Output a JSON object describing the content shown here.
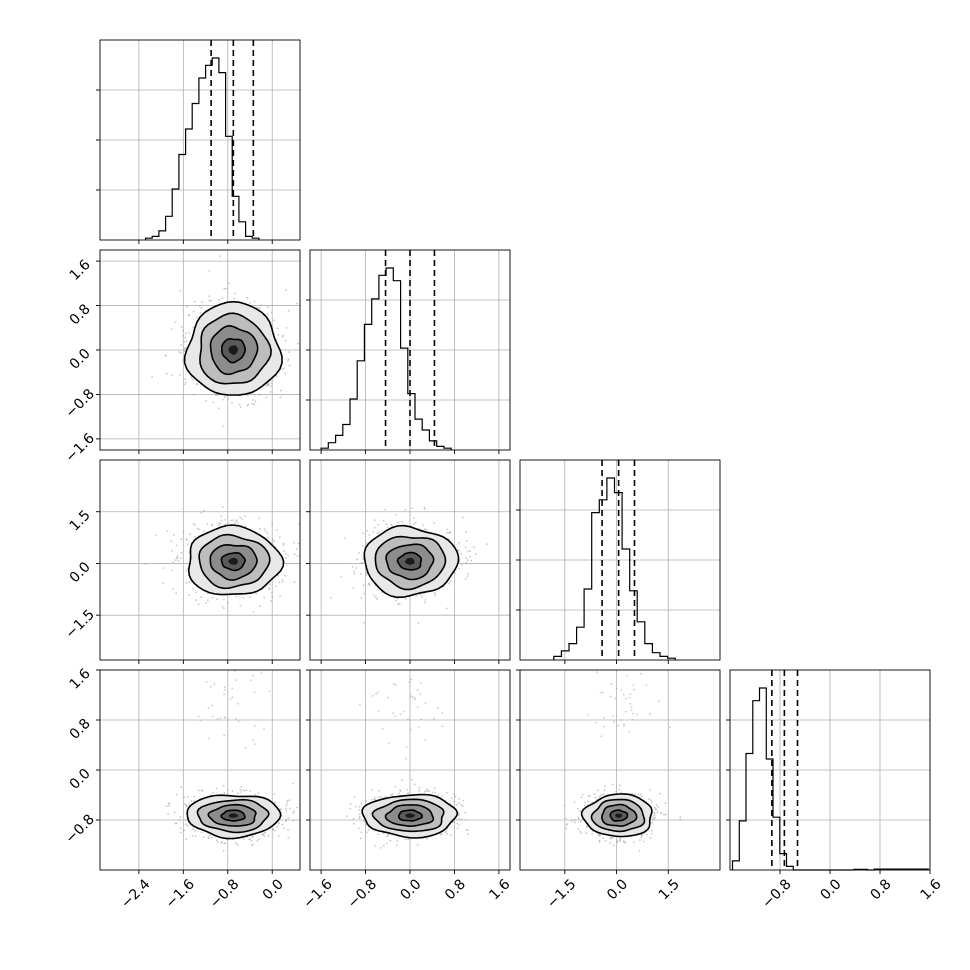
{
  "chart_data": {
    "type": "corner",
    "n_params": 4,
    "grid": true,
    "colors": {
      "line": "#000000",
      "grid": "#b0b0b0",
      "scatter": "#9a9a9a",
      "fill_levels": [
        "#e8e8e8",
        "#bdbdbd",
        "#8c8c8c",
        "#5a5a5a",
        "#1a1a1a"
      ]
    },
    "params": [
      {
        "range": [
          -3.1,
          0.5
        ],
        "ticks": [
          -2.4,
          -1.6,
          -0.8,
          0.0
        ],
        "tick_labels": [
          "−2.4",
          "−1.6",
          "−0.8",
          "0.0"
        ],
        "quantiles": [
          -1.1,
          -0.7,
          -0.34
        ],
        "hist_start": -2.28,
        "hist_step": 0.12,
        "hist": [
          0.01,
          0.02,
          0.05,
          0.13,
          0.28,
          0.47,
          0.61,
          0.75,
          0.89,
          0.96,
          1.0,
          0.92,
          0.57,
          0.24,
          0.1,
          0.02,
          0.01
        ]
      },
      {
        "range": [
          -1.8,
          1.8
        ],
        "ticks": [
          -1.6,
          -0.8,
          0.0,
          0.8,
          1.6
        ],
        "tick_labels": [
          "−1.6",
          "−0.8",
          "0.0",
          "0.8",
          "1.6"
        ],
        "quantiles": [
          -0.44,
          0.0,
          0.44
        ],
        "hist_start": -1.6,
        "hist_step": 0.13,
        "hist": [
          0.01,
          0.04,
          0.08,
          0.14,
          0.28,
          0.49,
          0.69,
          0.83,
          0.96,
          1.0,
          0.93,
          0.56,
          0.31,
          0.17,
          0.11,
          0.05,
          0.02,
          0.01
        ]
      },
      {
        "range": [
          -2.8,
          3.0
        ],
        "ticks": [
          -1.5,
          0.0,
          1.5
        ],
        "tick_labels": [
          "−1.5",
          "0.0",
          "1.5"
        ],
        "quantiles": [
          -0.42,
          0.06,
          0.52
        ],
        "hist_start": -1.82,
        "hist_step": 0.22,
        "hist": [
          0.02,
          0.05,
          0.09,
          0.18,
          0.39,
          0.81,
          0.88,
          1.0,
          0.92,
          0.61,
          0.38,
          0.21,
          0.09,
          0.04,
          0.02,
          0.01
        ]
      },
      {
        "range": [
          -1.6,
          1.6
        ],
        "ticks": [
          -0.8,
          0.0,
          0.8,
          1.6
        ],
        "tick_labels": [
          "−0.8",
          "0.0",
          "0.8",
          "1.6"
        ],
        "quantiles": [
          -0.93,
          -0.73,
          -0.52
        ],
        "hist_start": -1.56,
        "hist_step": 0.108,
        "hist": [
          0.05,
          0.27,
          0.64,
          0.93,
          1.0,
          0.61,
          0.29,
          0.09,
          0.02,
          0.0,
          0.0,
          0.0,
          0.0,
          0.0,
          0.0,
          0.0,
          0.0,
          0.0,
          0.004,
          0.004,
          0.0,
          0.005,
          0.005,
          0.005,
          0.005,
          0.005,
          0.005,
          0.005,
          0.005
        ]
      }
    ],
    "pairs": [
      {
        "row": 1,
        "col": 0,
        "center": [
          -0.7,
          0.0
        ],
        "sigma": [
          0.42,
          0.42
        ],
        "outlier_center": null
      },
      {
        "row": 2,
        "col": 0,
        "center": [
          -0.7,
          0.06
        ],
        "sigma": [
          0.42,
          0.5
        ]
      },
      {
        "row": 2,
        "col": 1,
        "center": [
          0.0,
          0.06
        ],
        "sigma": [
          0.42,
          0.5
        ]
      },
      {
        "row": 3,
        "col": 0,
        "center": [
          -0.7,
          -0.73
        ],
        "sigma": [
          0.42,
          0.17
        ],
        "outlier_center": [
          -0.7,
          1.1
        ]
      },
      {
        "row": 3,
        "col": 1,
        "center": [
          0.0,
          -0.73
        ],
        "sigma": [
          0.42,
          0.17
        ],
        "outlier_center": [
          0.0,
          1.1
        ]
      },
      {
        "row": 3,
        "col": 2,
        "center": [
          0.06,
          -0.73
        ],
        "sigma": [
          0.5,
          0.17
        ],
        "outlier_center": [
          0.06,
          1.1
        ]
      }
    ],
    "contour_levels_sigma": [
      0.5,
      1.0,
      1.5,
      2.0
    ]
  }
}
